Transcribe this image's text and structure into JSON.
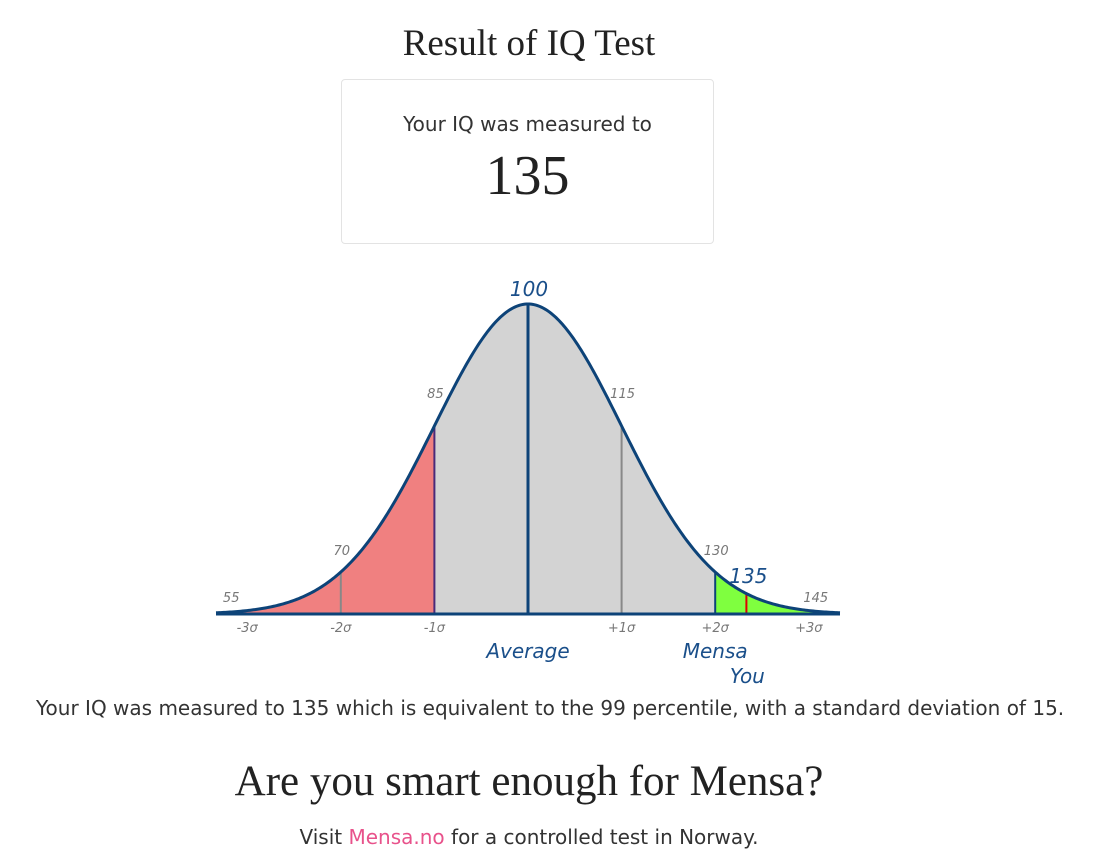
{
  "page": {
    "title": "Result of IQ Test",
    "score_card": {
      "label": "Your IQ was measured to",
      "value": "135"
    },
    "summary": {
      "prefix": "Your IQ was measured to",
      "iq": "135",
      "middle": "which is equivalent to the",
      "percentile": "99",
      "suffix": "percentile, with a standard deviation of",
      "sd": "15."
    },
    "headline": "Are you smart enough for Mensa?",
    "visit": {
      "prefix": "Visit",
      "link_text": "Mensa.no",
      "suffix": "for a controlled test in Norway."
    }
  },
  "colors": {
    "curve": "#0d4378",
    "fill_gray": "#d3d3d3",
    "fill_red": "#f08080",
    "fill_green": "#7fff3f",
    "you_marker": "#dd0000",
    "link": "#e8528b"
  },
  "chart_data": {
    "type": "area",
    "distribution": "normal",
    "mean": 100,
    "sd": 15,
    "xlim": [
      50,
      150
    ],
    "score": 135,
    "score_label": "135",
    "top_label": "100",
    "markers": [
      {
        "iq": 55,
        "label": "55",
        "sigma": "-3σ"
      },
      {
        "iq": 70,
        "label": "70",
        "sigma": "-2σ"
      },
      {
        "iq": 85,
        "label": "85",
        "sigma": "-1σ"
      },
      {
        "iq": 115,
        "label": "115",
        "sigma": "+1σ"
      },
      {
        "iq": 130,
        "label": "130",
        "sigma": "+2σ"
      },
      {
        "iq": 145,
        "label": "145",
        "sigma": "+3σ"
      }
    ],
    "regions": [
      {
        "from": 50,
        "to": 70,
        "color": "#f08080"
      },
      {
        "from": 70,
        "to": 85,
        "color": "#f08080"
      },
      {
        "from": 85,
        "to": 130,
        "color": "#d3d3d3"
      },
      {
        "from": 130,
        "to": 150,
        "color": "#7fff3f"
      }
    ],
    "annotations": {
      "average": {
        "iq": 100,
        "label": "Average"
      },
      "mensa": {
        "iq": 130,
        "label": "Mensa"
      },
      "you": {
        "iq": 135,
        "label": "You"
      }
    }
  }
}
